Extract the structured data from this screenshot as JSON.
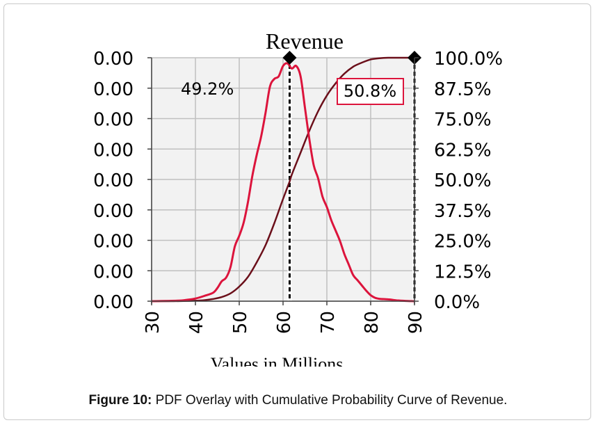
{
  "caption": {
    "label": "Figure 10:",
    "text": "PDF Overlay with Cumulative Probability Curve of Revenue."
  },
  "chart_data": {
    "type": "line",
    "title": "Revenue",
    "xlabel": "Values in Millions",
    "ylabel": "",
    "xlim": [
      30,
      90
    ],
    "x_ticks": [
      "30",
      "40",
      "50",
      "60",
      "70",
      "80",
      "90"
    ],
    "y_left_ticks": [
      "0.00",
      "0.00",
      "0.00",
      "0.00",
      "0.00",
      "0.00",
      "0.00",
      "0.00",
      "0.00"
    ],
    "y_right_ticks": [
      "0.0%",
      "12.5%",
      "25.0%",
      "37.5%",
      "50.0%",
      "62.5%",
      "75.0%",
      "87.5%",
      "100.0%"
    ],
    "y_right_lim": [
      0,
      100
    ],
    "grid": true,
    "colors": {
      "pdf": "#dc143c",
      "cdf": "#6b0f1a",
      "plot_bg": "#f2f2f2",
      "grid": "#c0c0c0",
      "label_border": "#dc143c"
    },
    "markers": [
      61.5,
      90
    ],
    "annotations": {
      "left_pct": "49.2%",
      "right_pct": "50.8%"
    },
    "series": [
      {
        "kind": "pdf",
        "x": [
          30,
          36,
          38,
          40,
          42,
          44,
          45,
          46,
          47,
          48,
          49,
          50,
          51,
          52,
          53,
          54,
          55,
          56,
          57,
          58,
          59,
          60,
          61,
          62,
          63,
          64,
          65,
          66,
          67,
          68,
          69,
          70,
          71,
          72,
          73,
          74,
          75,
          76,
          77,
          78,
          79,
          80,
          81,
          82,
          84,
          86,
          88,
          90
        ],
        "y": [
          0,
          0.2,
          0.5,
          1,
          2,
          3.2,
          5,
          7.6,
          9,
          13,
          21,
          25,
          30,
          38,
          48,
          56,
          63,
          72,
          82,
          85,
          86,
          90,
          91,
          89,
          90,
          86,
          74,
          62,
          52,
          47,
          40,
          36,
          31,
          27,
          23,
          18,
          14,
          10,
          8,
          6,
          4,
          2.3,
          1.3,
          0.9,
          0.7,
          0.3,
          0.1,
          0
        ]
      },
      {
        "kind": "cdf",
        "x": [
          30,
          35,
          40,
          42,
          44,
          46,
          48,
          50,
          52,
          54,
          56,
          58,
          60,
          61.5,
          62,
          64,
          66,
          68,
          70,
          72,
          74,
          76,
          78,
          80,
          82,
          84,
          86,
          88,
          90
        ],
        "y": [
          0,
          0,
          0.2,
          0.4,
          0.9,
          1.7,
          3.2,
          6,
          10,
          16,
          23,
          32,
          42,
          49.2,
          52,
          61,
          70,
          78,
          84.5,
          89.5,
          93.5,
          96.3,
          98,
          99.3,
          99.8,
          100,
          100,
          100,
          100
        ]
      }
    ]
  }
}
